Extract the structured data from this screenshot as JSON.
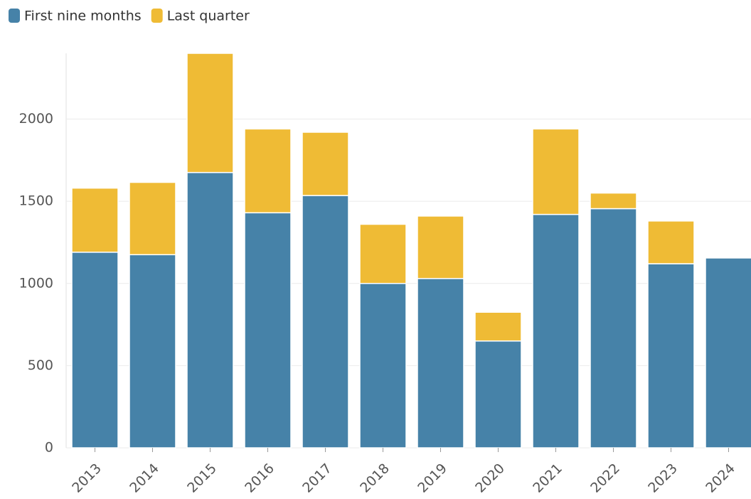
{
  "chart_data": {
    "type": "stacked_bar",
    "categories": [
      "2013",
      "2014",
      "2015",
      "2016",
      "2017",
      "2018",
      "2019",
      "2020",
      "2021",
      "2022",
      "2023",
      "2024"
    ],
    "series": [
      {
        "name": "First nine months",
        "color": "#4682a8",
        "values": [
          1190,
          1175,
          1675,
          1430,
          1535,
          1000,
          1030,
          650,
          1420,
          1455,
          1120,
          1155
        ]
      },
      {
        "name": "Last quarter",
        "color": "#efbb35",
        "values": [
          390,
          440,
          725,
          510,
          385,
          360,
          380,
          175,
          520,
          95,
          260,
          null
        ]
      }
    ],
    "ylim": [
      0,
      2400
    ],
    "yticks": [
      0,
      500,
      1000,
      1500,
      2000
    ],
    "grid": true,
    "legend": "top-left"
  }
}
